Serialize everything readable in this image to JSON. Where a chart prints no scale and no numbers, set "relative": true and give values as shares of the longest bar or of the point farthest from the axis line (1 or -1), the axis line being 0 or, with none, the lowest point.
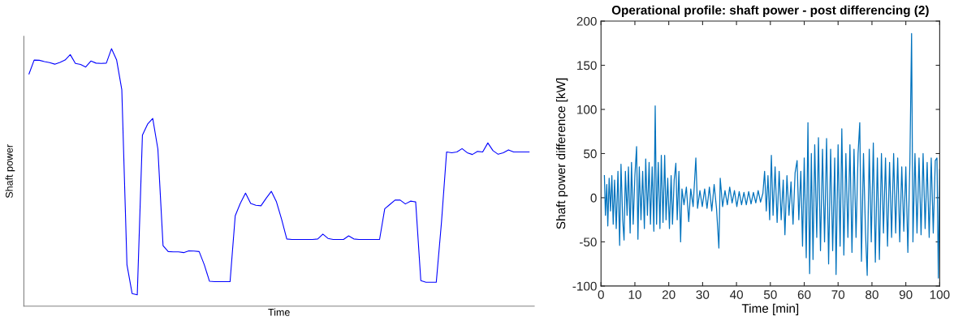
{
  "chart_data": [
    {
      "type": "line",
      "relative": true,
      "xlabel": "Time",
      "ylabel": "Shaft power",
      "tick_labels": false,
      "grid": false,
      "categories": [
        null,
        null,
        null,
        null,
        null,
        null,
        null,
        null,
        null,
        null,
        null,
        null,
        null,
        null,
        null,
        null,
        null,
        null,
        null,
        null,
        null,
        null,
        null,
        null,
        null,
        null,
        null,
        null,
        null,
        null,
        null,
        null,
        null,
        null,
        null,
        null,
        null,
        null,
        null,
        null,
        null,
        null,
        null,
        null,
        null,
        null,
        null,
        null,
        null,
        null,
        null,
        null,
        null,
        null,
        null,
        null,
        null,
        null,
        null,
        null,
        null,
        null,
        null,
        null,
        null,
        null,
        null,
        null,
        null,
        null,
        null,
        null,
        null,
        null,
        null,
        null,
        null,
        null,
        null,
        null,
        null,
        null,
        null,
        null,
        null,
        null,
        null,
        null,
        null,
        null,
        null,
        null,
        null,
        null,
        null,
        null,
        null,
        null
      ],
      "series": [
        {
          "color": "#0000ff",
          "values": [
            0.902,
            0.956,
            0.955,
            0.95,
            0.946,
            0.94,
            0.947,
            0.956,
            0.977,
            0.943,
            0.939,
            0.929,
            0.952,
            0.944,
            0.943,
            0.944,
            1.0,
            0.956,
            0.841,
            0.161,
            0.049,
            0.044,
            0.664,
            0.707,
            0.729,
            0.61,
            0.235,
            0.212,
            0.211,
            0.211,
            0.208,
            0.215,
            0.214,
            0.212,
            0.161,
            0.097,
            0.095,
            0.095,
            0.095,
            0.095,
            0.351,
            0.4,
            0.439,
            0.399,
            0.392,
            0.39,
            0.419,
            0.446,
            0.405,
            0.337,
            0.261,
            0.259,
            0.259,
            0.259,
            0.259,
            0.259,
            0.261,
            0.28,
            0.263,
            0.259,
            0.259,
            0.259,
            0.273,
            0.261,
            0.259,
            0.259,
            0.259,
            0.259,
            0.259,
            0.378,
            0.395,
            0.412,
            0.412,
            0.397,
            0.408,
            0.405,
            0.099,
            0.093,
            0.093,
            0.093,
            0.324,
            0.599,
            0.596,
            0.599,
            0.612,
            0.596,
            0.589,
            0.601,
            0.599,
            0.634,
            0.604,
            0.59,
            0.596,
            0.607,
            0.599,
            0.599,
            0.599,
            0.599
          ]
        }
      ]
    },
    {
      "type": "line",
      "title": "Operational profile: shaft power - post differencing (2)",
      "xlabel": "Time [min]",
      "ylabel": "Shaft power difference [kW]",
      "grid": false,
      "xlim": [
        0,
        100
      ],
      "xticks": [
        0,
        10,
        20,
        30,
        40,
        50,
        60,
        70,
        80,
        90,
        100
      ],
      "ylim": [
        -100,
        200
      ],
      "yticks": [
        -100,
        -50,
        0,
        50,
        100,
        150,
        200
      ],
      "series": [
        {
          "color": "#0072bd",
          "x": [
            1.0,
            1.3,
            1.7,
            2.0,
            2.4,
            2.8,
            3.2,
            3.6,
            4.0,
            4.5,
            5.0,
            5.5,
            5.9,
            6.4,
            6.8,
            7.2,
            7.7,
            8.1,
            8.6,
            9.0,
            9.5,
            10.0,
            10.5,
            10.9,
            11.3,
            11.8,
            12.3,
            12.8,
            13.2,
            13.7,
            14.2,
            14.6,
            15.1,
            15.6,
            16.0,
            16.4,
            16.9,
            17.4,
            17.8,
            18.3,
            18.8,
            19.2,
            19.7,
            20.2,
            20.7,
            21.1,
            21.6,
            22.1,
            22.5,
            23.0,
            23.5,
            23.9,
            24.5,
            25.2,
            25.9,
            26.5,
            27.2,
            28.0,
            28.5,
            29.2,
            29.9,
            30.6,
            31.3,
            32.0,
            32.7,
            33.4,
            34.1,
            34.8,
            35.2,
            35.9,
            36.6,
            37.3,
            38.0,
            38.7,
            39.4,
            40.1,
            40.8,
            41.5,
            42.2,
            42.9,
            43.6,
            44.3,
            45.0,
            45.7,
            46.4,
            47.1,
            47.8,
            48.3,
            48.8,
            49.3,
            49.8,
            50.3,
            50.8,
            51.4,
            52.0,
            52.6,
            53.2,
            53.8,
            54.3,
            54.9,
            55.5,
            56.1,
            56.7,
            57.3,
            57.9,
            58.4,
            59.0,
            59.5,
            60.0,
            60.6,
            61.1,
            61.6,
            62.1,
            62.6,
            63.1,
            63.7,
            64.2,
            64.8,
            65.4,
            66.0,
            66.6,
            67.2,
            67.8,
            68.4,
            69.0,
            69.4,
            70.0,
            70.6,
            71.1,
            71.7,
            72.3,
            72.9,
            73.5,
            74.1,
            74.7,
            75.3,
            75.9,
            76.4,
            76.9,
            77.5,
            78.1,
            78.6,
            79.2,
            79.8,
            80.4,
            81.0,
            81.6,
            82.2,
            82.8,
            83.4,
            84.0,
            84.6,
            85.2,
            85.8,
            86.4,
            87.0,
            87.6,
            88.2,
            88.8,
            89.4,
            90.0,
            90.6,
            91.2,
            91.7,
            92.1,
            92.7,
            93.3,
            93.9,
            94.5,
            95.1,
            95.7,
            96.3,
            96.9,
            97.5,
            98.1,
            98.7,
            99.2,
            99.6,
            100.0
          ],
          "values": [
            25,
            -20,
            15,
            -32,
            22,
            -15,
            25,
            -30,
            20,
            -35,
            30,
            -54,
            38,
            -25,
            -48,
            30,
            -20,
            35,
            -40,
            40,
            -30,
            25,
            58,
            -47,
            35,
            -25,
            30,
            -35,
            44,
            -20,
            40,
            -30,
            35,
            -38,
            104,
            -30,
            40,
            -35,
            48,
            -28,
            48,
            -25,
            22,
            -35,
            25,
            -30,
            20,
            39,
            -25,
            30,
            -50,
            10,
            -8,
            12,
            -27,
            10,
            -10,
            45,
            -12,
            8,
            -10,
            10,
            -12,
            12,
            -15,
            15,
            -12,
            -57,
            22,
            -10,
            8,
            -8,
            12,
            -6,
            8,
            -10,
            7,
            -8,
            6,
            -8,
            7,
            -7,
            6,
            -6,
            8,
            -5,
            5,
            30,
            -15,
            25,
            -25,
            48,
            -20,
            35,
            -28,
            30,
            -25,
            20,
            -42,
            25,
            -20,
            18,
            -30,
            28,
            42,
            -25,
            30,
            -55,
            45,
            -68,
            85,
            -86,
            50,
            -70,
            60,
            -45,
            68,
            -60,
            55,
            -50,
            67,
            -75,
            55,
            -60,
            45,
            -87,
            60,
            -55,
            78,
            -65,
            50,
            -45,
            60,
            -62,
            55,
            -45,
            50,
            85,
            -72,
            50,
            -40,
            -88,
            55,
            -50,
            62,
            -73,
            45,
            -70,
            50,
            -40,
            45,
            -55,
            40,
            -45,
            50,
            -40,
            45,
            -50,
            35,
            -38,
            35,
            -62,
            40,
            186,
            -50,
            50,
            -40,
            45,
            -42,
            50,
            -35,
            40,
            -45,
            45,
            -40,
            42,
            45,
            -91,
            32
          ]
        }
      ]
    }
  ]
}
